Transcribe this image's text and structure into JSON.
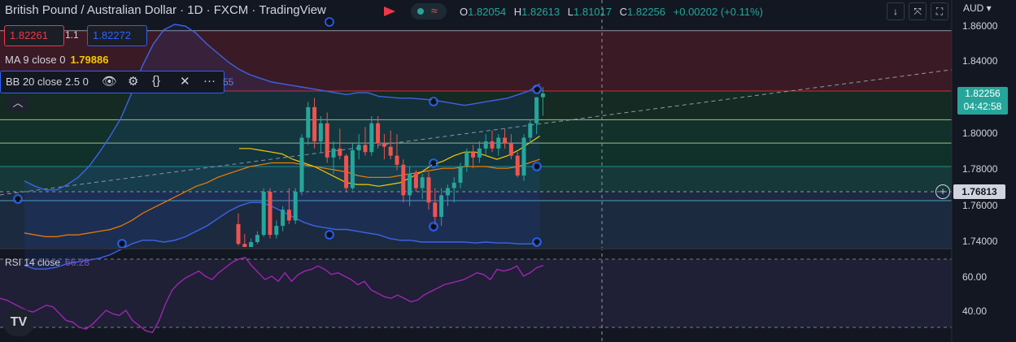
{
  "header": {
    "title": "British Pound / Australian Dollar · 1D · FXCM · TradingView",
    "live_symbol": "≈"
  },
  "ohlc": {
    "o_label": "O",
    "o_value": "1.82054",
    "h_label": "H",
    "h_value": "1.82613",
    "l_label": "L",
    "l_value": "1.81017",
    "c_label": "C",
    "c_value": "1.82256",
    "change": "+0.00202 (+0.11%)"
  },
  "trade": {
    "sell_price": "1.82261",
    "spread": "1.1",
    "buy_price": "1.82272"
  },
  "indicators": {
    "ma_label": "MA 9 close 0",
    "ma_value": "1.79886",
    "bb_label": "BB 20 close 2.5 0",
    "bb_value_fragment": "55",
    "rsi_label": "RSI 14 close",
    "rsi_value": "66.28"
  },
  "toolbar": {
    "down_icon": "arrow-down-icon",
    "collapse_icon": "collapse-icon",
    "fullscreen_icon": "fullscreen-icon",
    "currency": "AUD"
  },
  "price_axis": {
    "labels": [
      "1.86000",
      "1.84000",
      "1.80000",
      "1.78000",
      "1.76000",
      "1.74000"
    ],
    "last_price": "1.82256",
    "countdown": "04:42:58",
    "crosshair_price": "1.76813"
  },
  "rsi_axis": {
    "labels": [
      "60.00",
      "40.00"
    ]
  },
  "colors": {
    "background": "#131722",
    "up": "#26a69a",
    "down": "#ef5350",
    "bb": "#2962ff",
    "ma": "#f7c600",
    "ema": "#f57c00",
    "rsi": "#9c27b0"
  },
  "chart_data": [
    {
      "type": "candlestick",
      "symbol": "GBPAUD",
      "interval": "1D",
      "y_axis": {
        "min": 1.735,
        "max": 1.862,
        "label": "AUD"
      },
      "bars": [
        {
          "o": 1.75,
          "h": 1.756,
          "l": 1.738,
          "c": 1.739
        },
        {
          "o": 1.739,
          "h": 1.7445,
          "l": 1.733,
          "c": 1.736
        },
        {
          "o": 1.736,
          "h": 1.742,
          "l": 1.734,
          "c": 1.74
        },
        {
          "o": 1.74,
          "h": 1.746,
          "l": 1.739,
          "c": 1.744
        },
        {
          "o": 1.744,
          "h": 1.77,
          "l": 1.743,
          "c": 1.768
        },
        {
          "o": 1.768,
          "h": 1.77,
          "l": 1.742,
          "c": 1.744
        },
        {
          "o": 1.744,
          "h": 1.752,
          "l": 1.742,
          "c": 1.749
        },
        {
          "o": 1.749,
          "h": 1.76,
          "l": 1.746,
          "c": 1.758
        },
        {
          "o": 1.758,
          "h": 1.77,
          "l": 1.75,
          "c": 1.752
        },
        {
          "o": 1.752,
          "h": 1.77,
          "l": 1.75,
          "c": 1.768
        },
        {
          "o": 1.768,
          "h": 1.8,
          "l": 1.766,
          "c": 1.798
        },
        {
          "o": 1.798,
          "h": 1.818,
          "l": 1.794,
          "c": 1.815
        },
        {
          "o": 1.815,
          "h": 1.82,
          "l": 1.792,
          "c": 1.796
        },
        {
          "o": 1.796,
          "h": 1.81,
          "l": 1.79,
          "c": 1.806
        },
        {
          "o": 1.806,
          "h": 1.812,
          "l": 1.784,
          "c": 1.787
        },
        {
          "o": 1.787,
          "h": 1.796,
          "l": 1.778,
          "c": 1.792
        },
        {
          "o": 1.792,
          "h": 1.803,
          "l": 1.786,
          "c": 1.788
        },
        {
          "o": 1.788,
          "h": 1.789,
          "l": 1.768,
          "c": 1.77
        },
        {
          "o": 1.77,
          "h": 1.795,
          "l": 1.769,
          "c": 1.791
        },
        {
          "o": 1.791,
          "h": 1.8,
          "l": 1.786,
          "c": 1.794
        },
        {
          "o": 1.794,
          "h": 1.804,
          "l": 1.788,
          "c": 1.79
        },
        {
          "o": 1.79,
          "h": 1.81,
          "l": 1.788,
          "c": 1.806
        },
        {
          "o": 1.806,
          "h": 1.81,
          "l": 1.792,
          "c": 1.795
        },
        {
          "o": 1.795,
          "h": 1.8,
          "l": 1.786,
          "c": 1.793
        },
        {
          "o": 1.793,
          "h": 1.802,
          "l": 1.786,
          "c": 1.788
        },
        {
          "o": 1.788,
          "h": 1.8,
          "l": 1.78,
          "c": 1.783
        },
        {
          "o": 1.783,
          "h": 1.786,
          "l": 1.762,
          "c": 1.766
        },
        {
          "o": 1.766,
          "h": 1.782,
          "l": 1.76,
          "c": 1.778
        },
        {
          "o": 1.778,
          "h": 1.78,
          "l": 1.768,
          "c": 1.77
        },
        {
          "o": 1.77,
          "h": 1.778,
          "l": 1.764,
          "c": 1.776
        },
        {
          "o": 1.776,
          "h": 1.779,
          "l": 1.758,
          "c": 1.762
        },
        {
          "o": 1.762,
          "h": 1.77,
          "l": 1.748,
          "c": 1.754
        },
        {
          "o": 1.754,
          "h": 1.77,
          "l": 1.749,
          "c": 1.766
        },
        {
          "o": 1.766,
          "h": 1.772,
          "l": 1.76,
          "c": 1.77
        },
        {
          "o": 1.77,
          "h": 1.776,
          "l": 1.762,
          "c": 1.773
        },
        {
          "o": 1.773,
          "h": 1.784,
          "l": 1.77,
          "c": 1.782
        },
        {
          "o": 1.782,
          "h": 1.792,
          "l": 1.779,
          "c": 1.79
        },
        {
          "o": 1.79,
          "h": 1.794,
          "l": 1.781,
          "c": 1.787
        },
        {
          "o": 1.787,
          "h": 1.796,
          "l": 1.784,
          "c": 1.792
        },
        {
          "o": 1.792,
          "h": 1.8,
          "l": 1.788,
          "c": 1.796
        },
        {
          "o": 1.796,
          "h": 1.802,
          "l": 1.79,
          "c": 1.792
        },
        {
          "o": 1.792,
          "h": 1.8,
          "l": 1.788,
          "c": 1.798
        },
        {
          "o": 1.798,
          "h": 1.803,
          "l": 1.792,
          "c": 1.795
        },
        {
          "o": 1.795,
          "h": 1.8,
          "l": 1.786,
          "c": 1.788
        },
        {
          "o": 1.788,
          "h": 1.79,
          "l": 1.776,
          "c": 1.777
        },
        {
          "o": 1.777,
          "h": 1.8,
          "l": 1.774,
          "c": 1.798
        },
        {
          "o": 1.798,
          "h": 1.808,
          "l": 1.795,
          "c": 1.806
        },
        {
          "o": 1.806,
          "h": 1.82,
          "l": 1.8,
          "c": 1.8205
        },
        {
          "o": 1.8205,
          "h": 1.8261,
          "l": 1.8102,
          "c": 1.8226
        }
      ],
      "bollinger": {
        "upper": [
          1.774,
          1.771,
          1.769,
          1.769,
          1.772,
          1.776,
          1.782,
          1.79,
          1.799,
          1.809,
          1.823,
          1.838,
          1.85,
          1.858,
          1.861,
          1.86,
          1.856,
          1.85,
          1.845,
          1.84,
          1.836,
          1.833,
          1.831,
          1.829,
          1.828,
          1.827,
          1.826,
          1.825,
          1.824,
          1.823,
          1.822,
          1.823,
          1.823,
          1.821,
          1.8205,
          1.82,
          1.82,
          1.8195,
          1.819,
          1.818,
          1.817,
          1.816,
          1.817,
          1.818,
          1.819,
          1.82,
          1.822,
          1.824,
          1.828
        ],
        "lower": [
          1.727,
          1.725,
          1.725,
          1.726,
          1.728,
          1.729,
          1.73,
          1.731,
          1.733,
          1.736,
          1.739,
          1.741,
          1.741,
          1.74,
          1.741,
          1.743,
          1.746,
          1.749,
          1.753,
          1.757,
          1.76,
          1.762,
          1.762,
          1.76,
          1.757,
          1.754,
          1.751,
          1.749,
          1.748,
          1.747,
          1.747,
          1.746,
          1.745,
          1.744,
          1.742,
          1.741,
          1.741,
          1.74,
          1.74,
          1.74,
          1.74,
          1.74,
          1.7395,
          1.74,
          1.7395,
          1.7395,
          1.739,
          1.739,
          1.739
        ]
      },
      "ma": [
        1.74,
        1.739,
        1.738,
        1.739,
        1.741,
        1.741,
        1.742,
        1.744,
        1.746,
        1.748,
        1.753,
        1.759,
        1.764,
        1.77,
        1.773,
        1.778,
        1.781,
        1.784,
        1.788,
        1.791,
        1.792,
        1.792,
        1.791,
        1.79,
        1.789,
        1.786,
        1.784,
        1.782,
        1.779,
        1.776,
        1.773,
        1.772,
        1.772,
        1.771,
        1.772,
        1.773,
        1.776,
        1.779,
        1.783,
        1.785,
        1.788,
        1.79,
        1.79,
        1.788,
        1.786,
        1.788,
        1.791,
        1.795,
        1.7989
      ],
      "ema": [
        1.745,
        1.744,
        1.743,
        1.743,
        1.744,
        1.744,
        1.745,
        1.746,
        1.747,
        1.749,
        1.752,
        1.756,
        1.759,
        1.762,
        1.765,
        1.768,
        1.771,
        1.773,
        1.776,
        1.778,
        1.78,
        1.782,
        1.783,
        1.784,
        1.784,
        1.784,
        1.783,
        1.782,
        1.781,
        1.78,
        1.779,
        1.777,
        1.776,
        1.776,
        1.776,
        1.777,
        1.778,
        1.779,
        1.78,
        1.781,
        1.781,
        1.782,
        1.782,
        1.782,
        1.781,
        1.781,
        1.782,
        1.784,
        1.786
      ],
      "horizontal_levels": [
        1.8575,
        1.824,
        1.808,
        1.795,
        1.782,
        1.7681,
        1.763
      ],
      "trendline": [
        {
          "bar": 0,
          "value": 1.769
        },
        {
          "bar": 64,
          "value": 1.835
        }
      ]
    },
    {
      "type": "line",
      "name": "RSI 14 close",
      "y_axis": {
        "min": 25,
        "max": 75
      },
      "bands": [
        70,
        30
      ],
      "values": [
        47,
        46,
        44,
        42,
        40,
        39,
        41,
        43,
        42,
        38,
        34,
        33,
        30,
        29,
        32,
        36,
        40,
        38,
        37,
        40,
        34,
        31,
        28,
        27,
        34,
        44,
        52,
        56,
        59,
        61,
        63,
        60,
        58,
        62,
        65,
        68,
        70,
        71,
        66,
        62,
        58,
        60,
        57,
        62,
        57,
        61,
        63,
        64,
        66,
        64,
        61,
        62,
        60,
        58,
        55,
        57,
        52,
        50,
        48,
        47,
        49,
        47,
        45,
        46,
        49,
        51,
        53,
        55,
        56,
        57,
        58,
        60,
        62,
        61,
        58,
        64,
        63,
        64,
        66,
        60,
        62,
        65,
        66.28
      ]
    }
  ]
}
